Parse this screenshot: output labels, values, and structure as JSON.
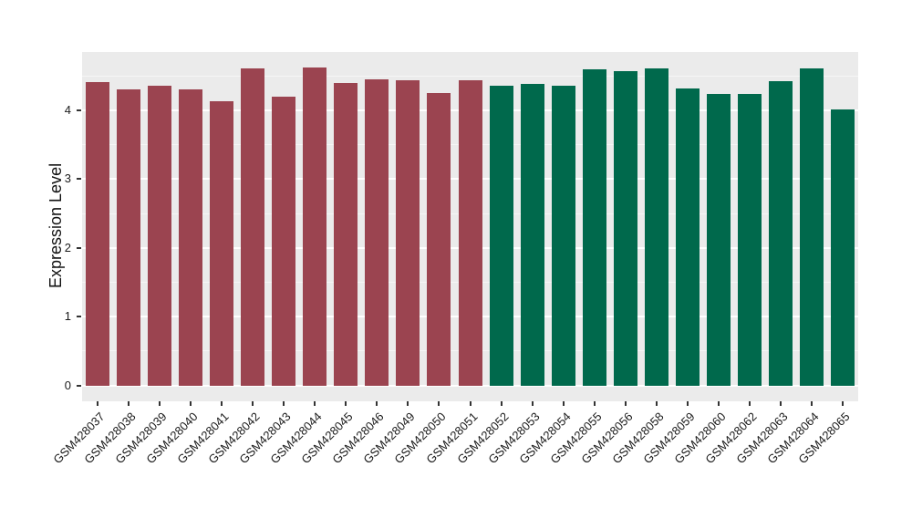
{
  "chart_data": {
    "type": "bar",
    "title": "",
    "xlabel": "",
    "ylabel": "Expression Level",
    "ylim": [
      -0.23,
      4.85
    ],
    "yticks": [
      0,
      1,
      2,
      3,
      4
    ],
    "yticks_minor": [
      0.5,
      1.5,
      2.5,
      3.5,
      4.5
    ],
    "grid": "on",
    "legend": "none",
    "categories": [
      "GSM428037",
      "GSM428038",
      "GSM428039",
      "GSM428040",
      "GSM428041",
      "GSM428042",
      "GSM428043",
      "GSM428044",
      "GSM428045",
      "GSM428046",
      "GSM428049",
      "GSM428050",
      "GSM428051",
      "GSM428052",
      "GSM428053",
      "GSM428054",
      "GSM428055",
      "GSM428056",
      "GSM428058",
      "GSM428059",
      "GSM428060",
      "GSM428062",
      "GSM428063",
      "GSM428064",
      "GSM428065"
    ],
    "values": [
      4.41,
      4.3,
      4.36,
      4.3,
      4.13,
      4.61,
      4.2,
      4.62,
      4.4,
      4.45,
      4.44,
      4.25,
      4.44,
      4.36,
      4.38,
      4.36,
      4.6,
      4.57,
      4.61,
      4.32,
      4.24,
      4.24,
      4.42,
      4.61,
      4.01
    ],
    "group_index": [
      0,
      0,
      0,
      0,
      0,
      0,
      0,
      0,
      0,
      0,
      0,
      0,
      0,
      1,
      1,
      1,
      1,
      1,
      1,
      1,
      1,
      1,
      1,
      1,
      1
    ],
    "group_colors": [
      "#9B4450",
      "#00694C"
    ],
    "panel_background": "#EBEBEB",
    "grid_major_color": "#FFFFFF",
    "axis_text_color": "#1a1a1a"
  }
}
